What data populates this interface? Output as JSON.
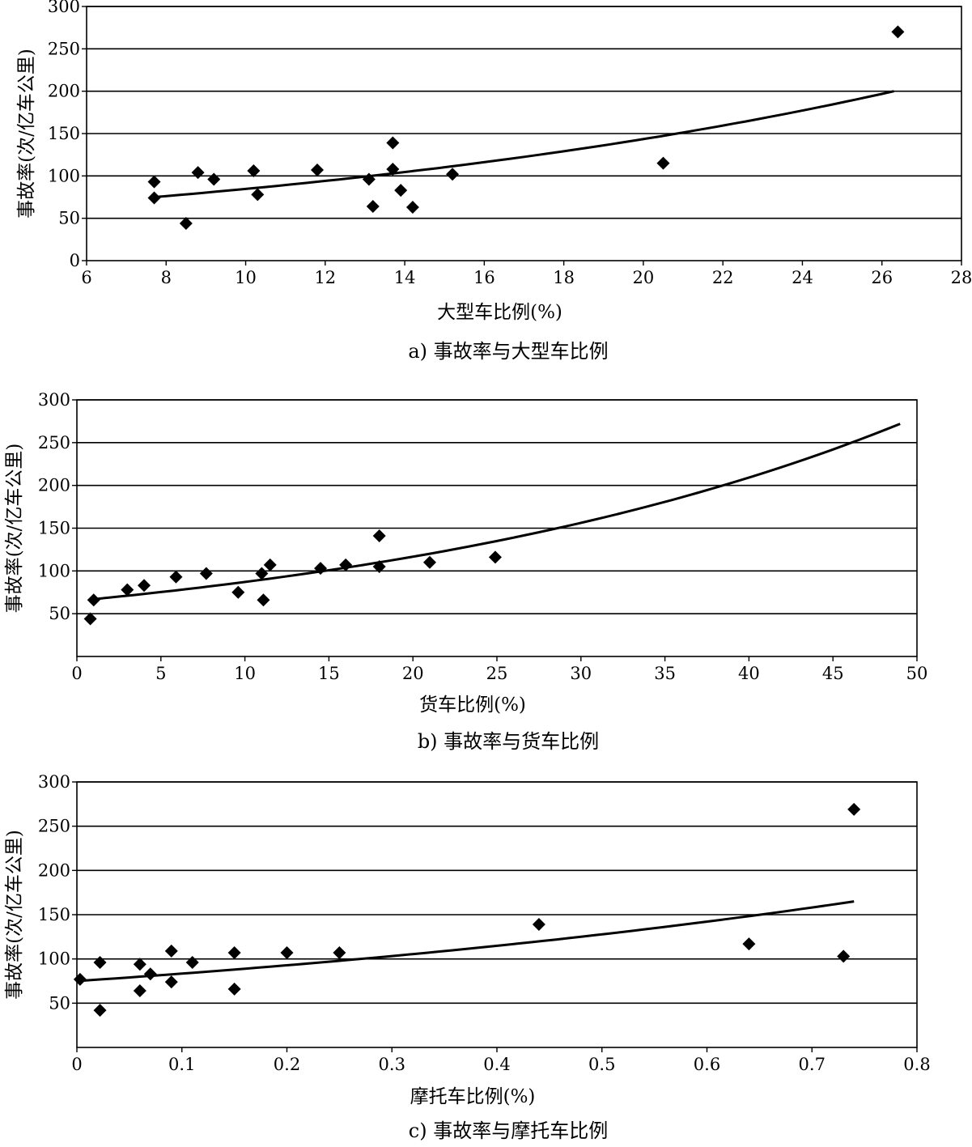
{
  "chart_data": [
    {
      "type": "scatter",
      "caption": "a) 事故率与大型车比例",
      "xlabel": "大型车比例(%)",
      "ylabel": "事故率(次/亿车公里)",
      "xlim": [
        6,
        28
      ],
      "ylim": [
        0,
        300
      ],
      "xticks": [
        6,
        8,
        10,
        12,
        14,
        16,
        18,
        20,
        22,
        24,
        26,
        28
      ],
      "yticks": [
        0,
        50,
        100,
        150,
        200,
        250,
        300
      ],
      "grid": "horizontal",
      "points": [
        {
          "x": 7.7,
          "y": 93
        },
        {
          "x": 7.7,
          "y": 74
        },
        {
          "x": 8.5,
          "y": 44
        },
        {
          "x": 8.8,
          "y": 104
        },
        {
          "x": 9.2,
          "y": 96
        },
        {
          "x": 10.2,
          "y": 106
        },
        {
          "x": 10.3,
          "y": 78
        },
        {
          "x": 11.8,
          "y": 107
        },
        {
          "x": 13.1,
          "y": 96
        },
        {
          "x": 13.2,
          "y": 64
        },
        {
          "x": 13.7,
          "y": 139
        },
        {
          "x": 13.7,
          "y": 108
        },
        {
          "x": 13.9,
          "y": 83
        },
        {
          "x": 14.2,
          "y": 63
        },
        {
          "x": 15.2,
          "y": 102
        },
        {
          "x": 20.5,
          "y": 115
        },
        {
          "x": 26.4,
          "y": 270
        }
      ],
      "trendline": {
        "type": "exponential",
        "x_range": [
          7.7,
          26.3
        ],
        "y_range": [
          75,
          200
        ]
      }
    },
    {
      "type": "scatter",
      "caption": "b) 事故率与货车比例",
      "xlabel": "货车比例(%)",
      "ylabel": "事故率(次/亿车公里)",
      "xlim": [
        0,
        50
      ],
      "ylim": [
        0,
        300
      ],
      "xticks": [
        0,
        5,
        10,
        15,
        20,
        25,
        30,
        35,
        40,
        45,
        50
      ],
      "yticks": [
        50,
        100,
        150,
        200,
        250,
        300
      ],
      "grid": "horizontal",
      "points": [
        {
          "x": 0.8,
          "y": 44
        },
        {
          "x": 1.0,
          "y": 66
        },
        {
          "x": 3.0,
          "y": 78
        },
        {
          "x": 4.0,
          "y": 83
        },
        {
          "x": 5.9,
          "y": 93
        },
        {
          "x": 7.7,
          "y": 97
        },
        {
          "x": 9.6,
          "y": 75
        },
        {
          "x": 11.0,
          "y": 97
        },
        {
          "x": 11.1,
          "y": 66
        },
        {
          "x": 11.5,
          "y": 107
        },
        {
          "x": 14.5,
          "y": 103
        },
        {
          "x": 16.0,
          "y": 107
        },
        {
          "x": 18.0,
          "y": 141
        },
        {
          "x": 18.0,
          "y": 105
        },
        {
          "x": 21.0,
          "y": 110
        },
        {
          "x": 24.9,
          "y": 116
        }
      ],
      "trendline": {
        "type": "exponential",
        "x_range": [
          1.0,
          49.0
        ],
        "y_range": [
          67,
          272
        ]
      }
    },
    {
      "type": "scatter",
      "caption": "c) 事故率与摩托车比例",
      "xlabel": "摩托车比例(%)",
      "ylabel": "事故率(次/亿车公里)",
      "xlim": [
        0,
        0.8
      ],
      "ylim": [
        0,
        300
      ],
      "xticks": [
        0,
        0.1,
        0.2,
        0.3,
        0.4,
        0.5,
        0.6,
        0.7,
        0.8
      ],
      "yticks": [
        50,
        100,
        150,
        200,
        250,
        300
      ],
      "grid": "horizontal",
      "points": [
        {
          "x": 0.003,
          "y": 77
        },
        {
          "x": 0.022,
          "y": 96
        },
        {
          "x": 0.022,
          "y": 42
        },
        {
          "x": 0.06,
          "y": 94
        },
        {
          "x": 0.06,
          "y": 64
        },
        {
          "x": 0.07,
          "y": 83
        },
        {
          "x": 0.09,
          "y": 109
        },
        {
          "x": 0.09,
          "y": 74
        },
        {
          "x": 0.11,
          "y": 96
        },
        {
          "x": 0.15,
          "y": 107
        },
        {
          "x": 0.15,
          "y": 66
        },
        {
          "x": 0.2,
          "y": 107
        },
        {
          "x": 0.25,
          "y": 107
        },
        {
          "x": 0.44,
          "y": 139
        },
        {
          "x": 0.64,
          "y": 117
        },
        {
          "x": 0.73,
          "y": 103
        },
        {
          "x": 0.74,
          "y": 269
        }
      ],
      "trendline": {
        "type": "exponential",
        "x_range": [
          0.0,
          0.74
        ],
        "y_range": [
          75,
          165
        ]
      }
    }
  ]
}
